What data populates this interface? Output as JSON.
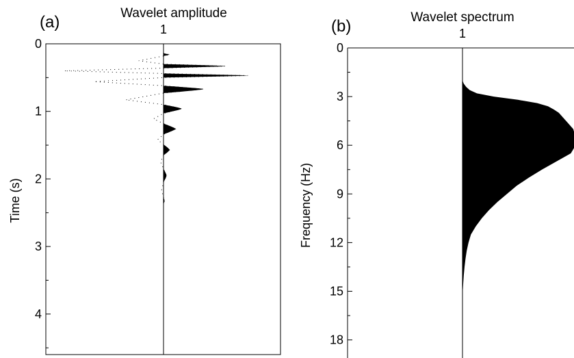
{
  "chart_data": [
    {
      "panel_label": "(a)",
      "type": "line",
      "title": "Wavelet amplitude",
      "trace_label": "1",
      "ylabel": "Time (s)",
      "xlabel": "",
      "ylim": [
        0,
        4.6
      ],
      "yticks_major": [
        "0",
        "1",
        "2",
        "3",
        "4"
      ],
      "ytick_major_values": [
        0,
        1,
        2,
        3,
        4
      ],
      "ytick_minor_values": [
        0.5,
        1.5,
        2.5,
        3.5,
        4.5
      ],
      "positive_fill": "black",
      "series": [
        {
          "values": [
            {
              "t": 0.14,
              "a": 0.0
            },
            {
              "t": 0.16,
              "a": 0.06
            },
            {
              "t": 0.18,
              "a": 0.0
            },
            {
              "t": 0.25,
              "a": -0.25
            },
            {
              "t": 0.3,
              "a": 0.0
            },
            {
              "t": 0.33,
              "a": 0.62
            },
            {
              "t": 0.36,
              "a": 0.0
            },
            {
              "t": 0.4,
              "a": -1.0
            },
            {
              "t": 0.44,
              "a": 0.0
            },
            {
              "t": 0.47,
              "a": 0.85
            },
            {
              "t": 0.5,
              "a": 0.0
            },
            {
              "t": 0.56,
              "a": -0.7
            },
            {
              "t": 0.62,
              "a": 0.0
            },
            {
              "t": 0.67,
              "a": 0.4
            },
            {
              "t": 0.73,
              "a": 0.0
            },
            {
              "t": 0.83,
              "a": -0.38
            },
            {
              "t": 0.9,
              "a": 0.0
            },
            {
              "t": 0.96,
              "a": 0.18
            },
            {
              "t": 1.03,
              "a": 0.0
            },
            {
              "t": 1.11,
              "a": -0.1
            },
            {
              "t": 1.18,
              "a": 0.0
            },
            {
              "t": 1.26,
              "a": 0.12
            },
            {
              "t": 1.34,
              "a": 0.0
            },
            {
              "t": 1.42,
              "a": -0.06
            },
            {
              "t": 1.49,
              "a": 0.0
            },
            {
              "t": 1.57,
              "a": 0.06
            },
            {
              "t": 1.65,
              "a": 0.0
            },
            {
              "t": 1.75,
              "a": -0.03
            },
            {
              "t": 1.85,
              "a": 0.0
            },
            {
              "t": 1.95,
              "a": 0.03
            },
            {
              "t": 2.05,
              "a": 0.0
            },
            {
              "t": 2.17,
              "a": -0.02
            },
            {
              "t": 2.27,
              "a": 0.0
            },
            {
              "t": 2.32,
              "a": 0.01
            },
            {
              "t": 2.38,
              "a": 0.0
            }
          ]
        }
      ]
    },
    {
      "panel_label": "(b)",
      "type": "area",
      "title": "Wavelet spectrum",
      "trace_label": "1",
      "ylabel": "Frequency (Hz)",
      "xlabel": "",
      "ylim": [
        0,
        18.5
      ],
      "yticks_major": [
        "0",
        "3",
        "6",
        "9",
        "12",
        "15",
        "18"
      ],
      "ytick_major_values": [
        0,
        3,
        6,
        9,
        12,
        15,
        18
      ],
      "ytick_minor_values": [
        1.5,
        4.5,
        7.5,
        10.5,
        13.5,
        16.5
      ],
      "series": [
        {
          "values": [
            {
              "f": 2.0,
              "a": 0.0
            },
            {
              "f": 2.2,
              "a": 0.01
            },
            {
              "f": 2.4,
              "a": 0.03
            },
            {
              "f": 2.6,
              "a": 0.06
            },
            {
              "f": 2.8,
              "a": 0.12
            },
            {
              "f": 3.0,
              "a": 0.26
            },
            {
              "f": 3.2,
              "a": 0.46
            },
            {
              "f": 3.4,
              "a": 0.62
            },
            {
              "f": 3.6,
              "a": 0.71
            },
            {
              "f": 3.8,
              "a": 0.76
            },
            {
              "f": 4.0,
              "a": 0.8
            },
            {
              "f": 4.5,
              "a": 0.86
            },
            {
              "f": 5.0,
              "a": 0.92
            },
            {
              "f": 5.5,
              "a": 0.94
            },
            {
              "f": 6.0,
              "a": 0.94
            },
            {
              "f": 6.5,
              "a": 0.9
            },
            {
              "f": 7.0,
              "a": 0.78
            },
            {
              "f": 7.5,
              "a": 0.66
            },
            {
              "f": 8.0,
              "a": 0.55
            },
            {
              "f": 8.5,
              "a": 0.45
            },
            {
              "f": 9.0,
              "a": 0.37
            },
            {
              "f": 9.5,
              "a": 0.29
            },
            {
              "f": 10.0,
              "a": 0.22
            },
            {
              "f": 10.5,
              "a": 0.16
            },
            {
              "f": 11.0,
              "a": 0.11
            },
            {
              "f": 11.5,
              "a": 0.07
            },
            {
              "f": 12.0,
              "a": 0.05
            },
            {
              "f": 12.5,
              "a": 0.035
            },
            {
              "f": 13.0,
              "a": 0.025
            },
            {
              "f": 13.5,
              "a": 0.017
            },
            {
              "f": 14.0,
              "a": 0.011
            },
            {
              "f": 14.5,
              "a": 0.006
            },
            {
              "f": 15.0,
              "a": 0.002
            },
            {
              "f": 15.5,
              "a": 0.0
            }
          ]
        }
      ]
    }
  ]
}
